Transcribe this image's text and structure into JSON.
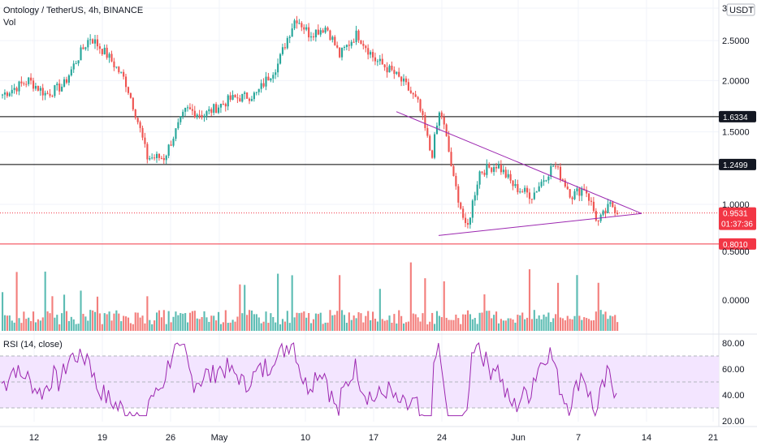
{
  "chart_data": {
    "type": "candlestick",
    "title": "Ontology / TetherUS, 4h, BINANCE",
    "currency": "USDT",
    "volume_label": "Vol",
    "price_axis": {
      "ticks": [
        "3",
        "2.5000",
        "2.0000",
        "1.5000",
        "1.0000"
      ],
      "tick_values": [
        3.0,
        2.5,
        2.0,
        1.5,
        1.0
      ]
    },
    "volume_axis": {
      "ticks": [
        "0.5000",
        "0.0000"
      ]
    },
    "rsi_axis": {
      "ticks": [
        "80.00",
        "60.00",
        "40.00",
        "20.00"
      ],
      "tick_values": [
        80,
        60,
        40,
        20
      ]
    },
    "x_ticks": [
      "12",
      "19",
      "26",
      "May",
      "10",
      "17",
      "24",
      "Jun",
      "7",
      "14",
      "21"
    ],
    "horizontal_levels": [
      {
        "value": 1.6334,
        "label": "1.6334",
        "color": "#000000"
      },
      {
        "value": 1.2499,
        "label": "1.2499",
        "color": "#000000"
      },
      {
        "value": 0.801,
        "label": "0.8010",
        "color": "#f23645"
      }
    ],
    "current_price": {
      "value": 0.9531,
      "label": "0.9531",
      "countdown": "01:37:36",
      "color": "#f23645"
    },
    "triangle": {
      "upper_start_price": 1.68,
      "upper_end_price": 0.95,
      "lower_start_price": 0.84,
      "lower_end_price": 0.95,
      "color": "#9c27b0"
    },
    "rsi": {
      "label": "RSI (14, close)",
      "upper_band": 70,
      "middle_band": 50,
      "lower_band": 30,
      "color": "#9c27b0",
      "band_fill": "#f3e5ff"
    },
    "series_anchors": [
      [
        0,
        1.85
      ],
      [
        6,
        2.0
      ],
      [
        10,
        1.85
      ],
      [
        14,
        1.95
      ],
      [
        20,
        2.55
      ],
      [
        24,
        2.3
      ],
      [
        28,
        2.0
      ],
      [
        33,
        1.3
      ],
      [
        37,
        1.3
      ],
      [
        42,
        1.7
      ],
      [
        46,
        1.65
      ],
      [
        52,
        1.8
      ],
      [
        58,
        1.85
      ],
      [
        63,
        2.2
      ],
      [
        67,
        2.85
      ],
      [
        70,
        2.6
      ],
      [
        74,
        2.7
      ],
      [
        77,
        2.3
      ],
      [
        81,
        2.6
      ],
      [
        85,
        2.25
      ],
      [
        89,
        2.1
      ],
      [
        92,
        1.95
      ],
      [
        95,
        1.75
      ],
      [
        98,
        1.3
      ],
      [
        100,
        1.7
      ],
      [
        103,
        1.15
      ],
      [
        106,
        0.85
      ],
      [
        109,
        1.2
      ],
      [
        113,
        1.25
      ],
      [
        117,
        1.1
      ],
      [
        121,
        1.05
      ],
      [
        126,
        1.25
      ],
      [
        130,
        1.05
      ],
      [
        133,
        1.1
      ],
      [
        136,
        0.9
      ],
      [
        139,
        1.0
      ],
      [
        141,
        0.95
      ]
    ],
    "colors": {
      "up": "#26a69a",
      "down": "#ef5350"
    }
  }
}
